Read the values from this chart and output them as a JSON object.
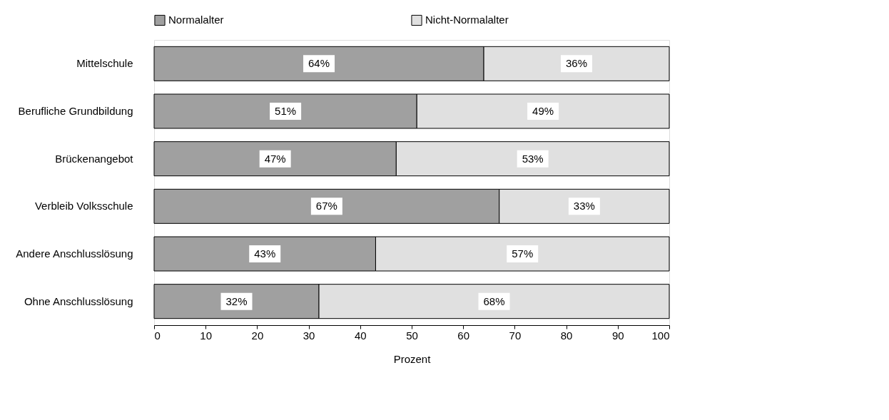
{
  "chart_data": {
    "type": "bar",
    "orientation": "horizontal",
    "stacked": true,
    "xlabel": "Prozent",
    "categories": [
      "Mittelschule",
      "Berufliche Grundbildung",
      "Brückenangebot",
      "Verbleib Volksschule",
      "Andere Anschlusslösung",
      "Ohne Anschlusslösung"
    ],
    "series": [
      {
        "name": "Normalalter",
        "color": "#a0a0a0",
        "values": [
          64,
          51,
          47,
          67,
          43,
          32
        ],
        "value_labels": [
          "64%",
          "51%",
          "47%",
          "67%",
          "43%",
          "32%"
        ]
      },
      {
        "name": "Nicht-Normalalter",
        "color": "#e0e0e0",
        "values": [
          36,
          49,
          53,
          33,
          57,
          68
        ],
        "value_labels": [
          "36%",
          "49%",
          "53%",
          "33%",
          "57%",
          "68%"
        ]
      }
    ],
    "xlim": [
      0,
      100
    ],
    "xticks": [
      0,
      10,
      20,
      30,
      40,
      50,
      60,
      70,
      80,
      90,
      100
    ],
    "legend": "top",
    "grid": false
  }
}
